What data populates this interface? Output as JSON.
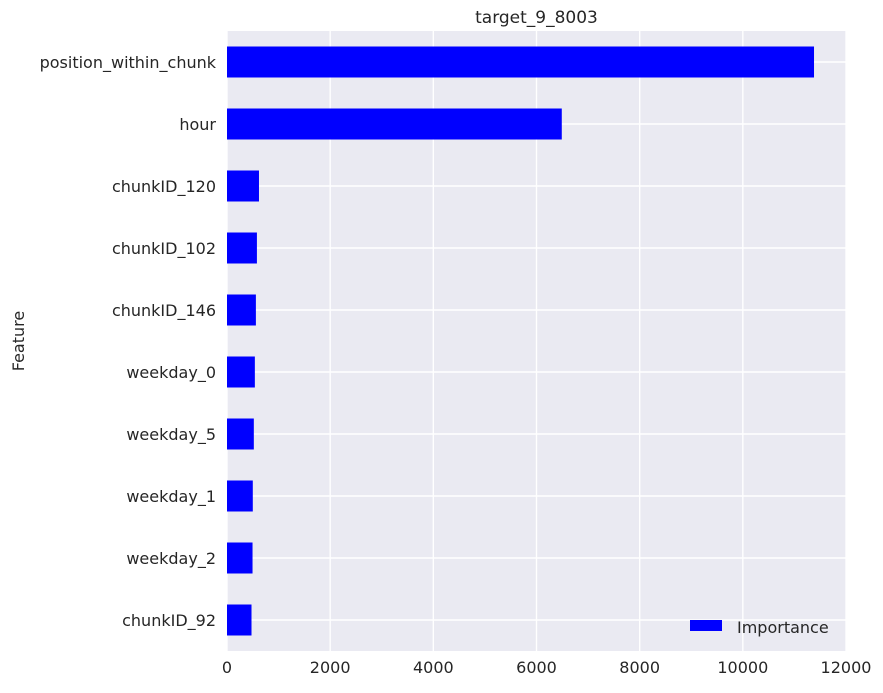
{
  "chart_data": {
    "type": "bar",
    "orientation": "horizontal",
    "title": "target_9_8003",
    "xlabel": "",
    "ylabel": "Feature",
    "xlim": [
      0,
      12000
    ],
    "xticks": [
      0,
      2000,
      4000,
      6000,
      8000,
      10000,
      12000
    ],
    "grid": true,
    "legend_position": "bottom-right",
    "categories": [
      "position_within_chunk",
      "hour",
      "chunkID_120",
      "chunkID_102",
      "chunkID_146",
      "weekday_0",
      "weekday_5",
      "weekday_1",
      "weekday_2",
      "chunkID_92"
    ],
    "series": [
      {
        "name": "Importance",
        "color": "#0000ff",
        "values": [
          11380,
          6490,
          620,
          580,
          560,
          540,
          520,
          500,
          495,
          475
        ]
      }
    ],
    "background_color": "#eaeaf2",
    "grid_color": "#ffffff"
  }
}
